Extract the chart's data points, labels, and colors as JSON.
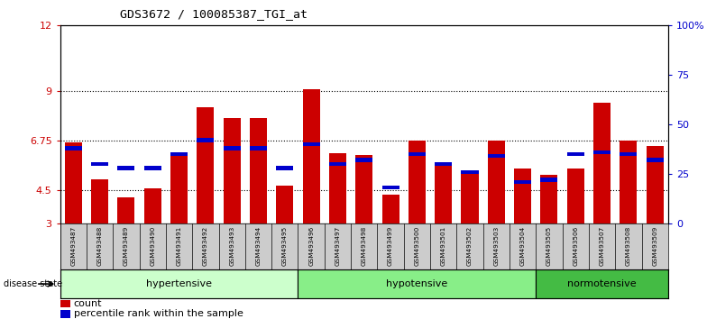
{
  "title": "GDS3672 / 100085387_TGI_at",
  "samples": [
    "GSM493487",
    "GSM493488",
    "GSM493489",
    "GSM493490",
    "GSM493491",
    "GSM493492",
    "GSM493493",
    "GSM493494",
    "GSM493495",
    "GSM493496",
    "GSM493497",
    "GSM493498",
    "GSM493499",
    "GSM493500",
    "GSM493501",
    "GSM493502",
    "GSM493503",
    "GSM493504",
    "GSM493505",
    "GSM493506",
    "GSM493507",
    "GSM493508",
    "GSM493509"
  ],
  "count_values": [
    6.7,
    5.0,
    4.2,
    4.6,
    6.2,
    8.3,
    7.8,
    7.8,
    4.7,
    9.1,
    6.2,
    6.1,
    4.3,
    6.75,
    5.6,
    5.4,
    6.75,
    5.5,
    5.2,
    5.5,
    8.5,
    6.75,
    6.5
  ],
  "percentile_values": [
    38,
    30,
    28,
    28,
    35,
    42,
    38,
    38,
    28,
    40,
    30,
    32,
    18,
    35,
    30,
    26,
    34,
    21,
    22,
    35,
    36,
    35,
    32
  ],
  "groups": [
    {
      "label": "hypertensive",
      "start": 0,
      "end": 9,
      "color": "#ccffcc"
    },
    {
      "label": "hypotensive",
      "start": 9,
      "end": 18,
      "color": "#88ee88"
    },
    {
      "label": "normotensive",
      "start": 18,
      "end": 23,
      "color": "#44bb44"
    }
  ],
  "ylim_left": [
    3,
    12
  ],
  "ylim_right": [
    0,
    100
  ],
  "yticks_left": [
    3,
    4.5,
    6.75,
    9,
    12
  ],
  "yticks_left_labels": [
    "3",
    "4.5",
    "6.75",
    "9",
    "12"
  ],
  "yticks_right": [
    0,
    25,
    50,
    75,
    100
  ],
  "yticks_right_labels": [
    "0",
    "25",
    "50",
    "75",
    "100%"
  ],
  "bar_color": "#cc0000",
  "marker_color": "#0000cc",
  "bar_width": 0.65,
  "background_color": "#ffffff",
  "legend_count_label": "count",
  "legend_percentile_label": "percentile rank within the sample"
}
